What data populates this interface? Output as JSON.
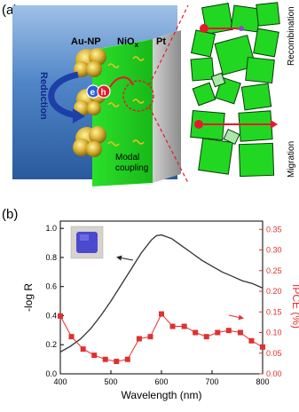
{
  "panel_a": {
    "label": "(a)",
    "au_np_label": "Au-NP",
    "nio_label": "NiO",
    "nio_sub": "x",
    "pt_label": "Pt",
    "reduction_label": "Reduction",
    "electron_label": "e",
    "hole_label": "h",
    "modal_label_line1": "Modal",
    "modal_label_line2": "coupling",
    "recombination_label": "Recombination",
    "migration_label": "Migration",
    "colors": {
      "blue_bg": "#3d74b8",
      "green": "#22d722",
      "gold": "#c9a227",
      "red": "#e8182c",
      "pt_gray": "#8a8a8a"
    }
  },
  "panel_b": {
    "label": "(b)"
  },
  "chart_data": {
    "type": "line",
    "xlabel": "Wavelength (nm)",
    "xlim": [
      400,
      800
    ],
    "xticks": [
      400,
      500,
      600,
      700,
      800
    ],
    "y_left": {
      "label": "-log R",
      "lim": [
        0,
        1.05
      ],
      "ticks": [
        "0.0",
        "0.2",
        "0.4",
        "0.6",
        "0.8",
        "1.0"
      ],
      "color": "#333333"
    },
    "y_right": {
      "label": "IPCE (%)",
      "lim": [
        0,
        0.37
      ],
      "ticks": [
        "0.00",
        "0.05",
        "0.10",
        "0.15",
        "0.20",
        "0.25",
        "0.30",
        "0.35"
      ],
      "color": "#e03030"
    },
    "series": [
      {
        "axis": "left",
        "style": "line",
        "color": "#333333",
        "x": [
          400,
          420,
          440,
          460,
          480,
          500,
          520,
          540,
          560,
          580,
          590,
          600,
          620,
          640,
          660,
          680,
          700,
          720,
          740,
          760,
          780,
          800
        ],
        "y": [
          0.15,
          0.19,
          0.24,
          0.31,
          0.4,
          0.5,
          0.61,
          0.72,
          0.83,
          0.92,
          0.95,
          0.955,
          0.93,
          0.88,
          0.83,
          0.78,
          0.74,
          0.7,
          0.67,
          0.64,
          0.62,
          0.59
        ]
      },
      {
        "axis": "right",
        "style": "line-markers",
        "color": "#e03030",
        "x": [
          400,
          422,
          445,
          467,
          489,
          511,
          533,
          556,
          578,
          600,
          622,
          645,
          667,
          689,
          711,
          733,
          756,
          778,
          800
        ],
        "y": [
          0.14,
          0.09,
          0.06,
          0.045,
          0.035,
          0.03,
          0.035,
          0.085,
          0.09,
          0.145,
          0.115,
          0.115,
          0.1,
          0.09,
          0.1,
          0.105,
          0.1,
          0.08,
          0.065
        ]
      }
    ]
  }
}
